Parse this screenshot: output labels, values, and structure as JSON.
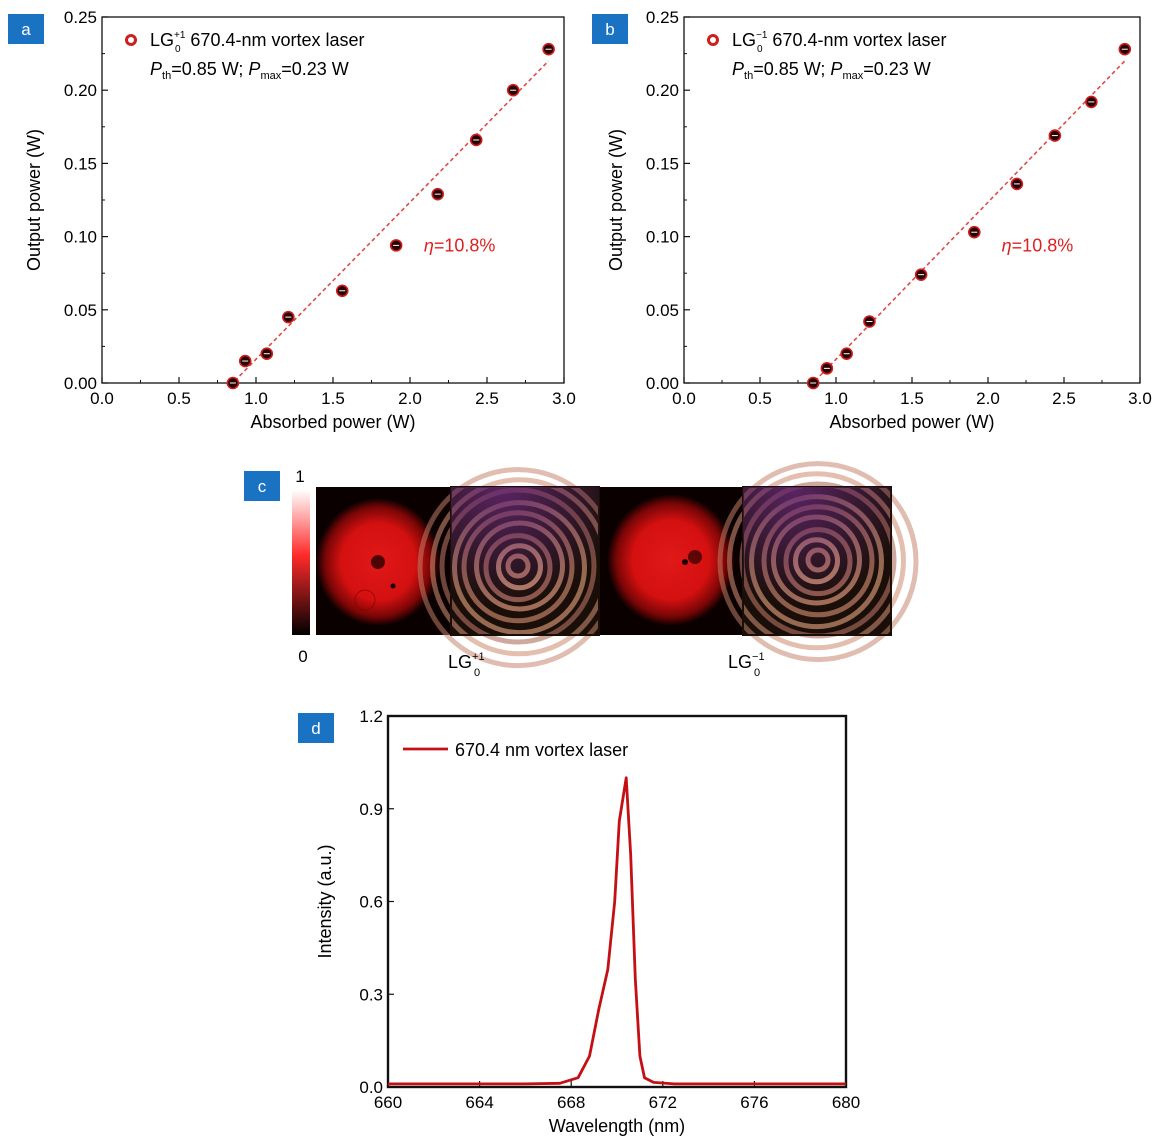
{
  "panel_labels": [
    "a",
    "b",
    "c",
    "d"
  ],
  "colors": {
    "label_bg": "#1a73c2",
    "marker": "#cc1f1f",
    "fit_line": "#e04a4a",
    "annotation": "#e02020",
    "spectrum": "#c40f14"
  },
  "chart_data": [
    {
      "panel": "a",
      "type": "scatter",
      "xlabel": "Absorbed power (W)",
      "ylabel": "Output power (W)",
      "xlim": [
        0.0,
        3.0
      ],
      "ylim": [
        0.0,
        0.25
      ],
      "xticks": [
        "0.0",
        "0.5",
        "1.0",
        "1.5",
        "2.0",
        "2.5",
        "3.0"
      ],
      "yticks": [
        "0.00",
        "0.05",
        "0.10",
        "0.15",
        "0.20",
        "0.25"
      ],
      "legend_position": "top-left",
      "legend": {
        "base": "LG",
        "sub": "0",
        "sup": "+1",
        "text": " 670.4-nm vortex laser",
        "p_th_sym": "P",
        "p_th_sub": "th",
        "p_th_val": "=0.85 W; ",
        "p_max_sym": "P",
        "p_max_sub": "max",
        "p_max_val": "=0.23 W"
      },
      "annotation": {
        "sym": "η",
        "val": "=10.8%"
      },
      "series": [
        {
          "x": [
            0.85,
            0.93,
            1.07,
            1.21,
            1.56,
            1.91,
            2.18,
            2.43,
            2.67,
            2.9
          ],
          "y": [
            0.0,
            0.015,
            0.02,
            0.045,
            0.063,
            0.094,
            0.129,
            0.166,
            0.2,
            0.228
          ]
        }
      ],
      "fit": {
        "x": [
          0.83,
          2.9
        ],
        "y": [
          -0.002,
          0.22
        ]
      }
    },
    {
      "panel": "b",
      "type": "scatter",
      "xlabel": "Absorbed power (W)",
      "ylabel": "Output power (W)",
      "xlim": [
        0.0,
        3.0
      ],
      "ylim": [
        0.0,
        0.25
      ],
      "xticks": [
        "0.0",
        "0.5",
        "1.0",
        "1.5",
        "2.0",
        "2.5",
        "3.0"
      ],
      "yticks": [
        "0.00",
        "0.05",
        "0.10",
        "0.15",
        "0.20",
        "0.25"
      ],
      "legend_position": "top-left",
      "legend": {
        "base": "LG",
        "sub": "0",
        "sup": "−1",
        "text": " 670.4-nm vortex laser",
        "p_th_sym": "P",
        "p_th_sub": "th",
        "p_th_val": "=0.85 W; ",
        "p_max_sym": "P",
        "p_max_sub": "max",
        "p_max_val": "=0.23 W"
      },
      "annotation": {
        "sym": "η",
        "val": "=10.8%"
      },
      "series": [
        {
          "x": [
            0.85,
            0.94,
            1.07,
            1.22,
            1.56,
            1.91,
            2.19,
            2.44,
            2.68,
            2.9
          ],
          "y": [
            0.0,
            0.01,
            0.02,
            0.042,
            0.074,
            0.103,
            0.136,
            0.169,
            0.192,
            0.228
          ]
        }
      ],
      "fit": {
        "x": [
          0.83,
          2.9
        ],
        "y": [
          -0.002,
          0.22
        ]
      }
    },
    {
      "panel": "d",
      "type": "line",
      "xlabel": "Wavelength (nm)",
      "ylabel": "Intensity (a.u.)",
      "xlim": [
        660,
        680
      ],
      "ylim": [
        0.0,
        1.2
      ],
      "xticks": [
        "660",
        "664",
        "668",
        "672",
        "676",
        "680"
      ],
      "yticks": [
        "0.0",
        "0.3",
        "0.6",
        "0.9",
        "1.2"
      ],
      "legend_position": "top-left",
      "series": [
        {
          "name": "670.4 nm vortex laser",
          "x": [
            660.0,
            662.0,
            664.0,
            666.0,
            667.5,
            668.3,
            668.8,
            669.2,
            669.6,
            669.9,
            670.1,
            670.4,
            670.6,
            670.8,
            671.0,
            671.2,
            671.6,
            672.5,
            674.0,
            676.0,
            678.0,
            680.0
          ],
          "y": [
            0.01,
            0.01,
            0.01,
            0.01,
            0.012,
            0.03,
            0.1,
            0.25,
            0.38,
            0.6,
            0.86,
            1.0,
            0.75,
            0.35,
            0.1,
            0.03,
            0.015,
            0.01,
            0.01,
            0.01,
            0.01,
            0.01
          ]
        }
      ]
    }
  ],
  "beam_panel": {
    "colorbar_max": "1",
    "colorbar_min": "0",
    "labels": [
      {
        "base": "LG",
        "sub": "0",
        "sup": "+1"
      },
      {
        "base": "LG",
        "sub": "0",
        "sup": "−1"
      }
    ]
  }
}
